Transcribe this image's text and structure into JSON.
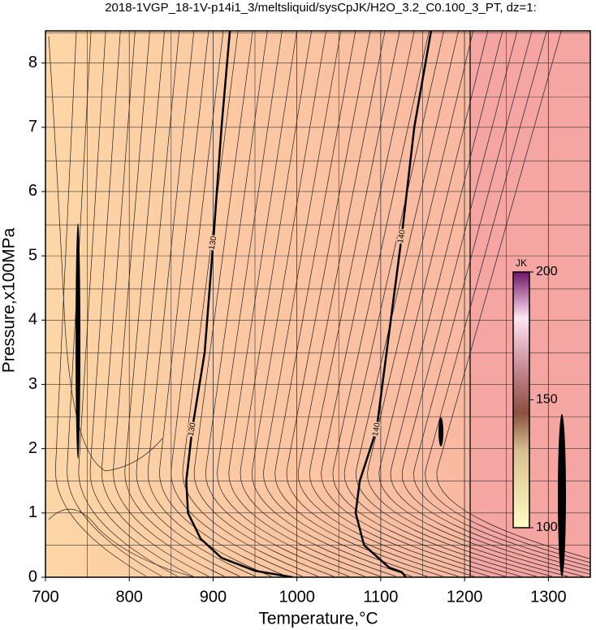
{
  "chart_data": {
    "type": "contour",
    "title": "2018-1VGP_18-1V-p14i1_3/meltsliquid/sysCpJK/H2O_3.2_C0.100_3_PT, dz=1:",
    "xlabel": "Temperature,°C",
    "ylabel": "Pressure,x100MPa",
    "xlim": [
      700,
      1350
    ],
    "ylim": [
      0,
      8.5
    ],
    "xticks": [
      700,
      800,
      900,
      1000,
      1100,
      1200,
      1300
    ],
    "yticks": [
      0,
      1,
      2,
      3,
      4,
      5,
      6,
      7,
      8
    ],
    "grid": true,
    "contours": [
      {
        "level": 130,
        "x": [
          920,
          910,
          900,
          890,
          875,
          868,
          870,
          885,
          910,
          950,
          995
        ],
        "y": [
          8.5,
          7,
          5.2,
          3.5,
          2.3,
          1.5,
          1,
          0.6,
          0.3,
          0.1,
          0
        ]
      },
      {
        "level": 140,
        "x": [
          1160,
          1140,
          1125,
          1110,
          1095,
          1075,
          1070,
          1080,
          1110,
          1125,
          1130
        ],
        "y": [
          8.5,
          7,
          5.3,
          3.8,
          2.3,
          1.5,
          1,
          0.5,
          0.15,
          0.08,
          0
        ]
      }
    ],
    "colorbar": {
      "label": "JK",
      "clim": [
        100,
        200
      ],
      "ticks": [
        100,
        150,
        200
      ]
    }
  }
}
